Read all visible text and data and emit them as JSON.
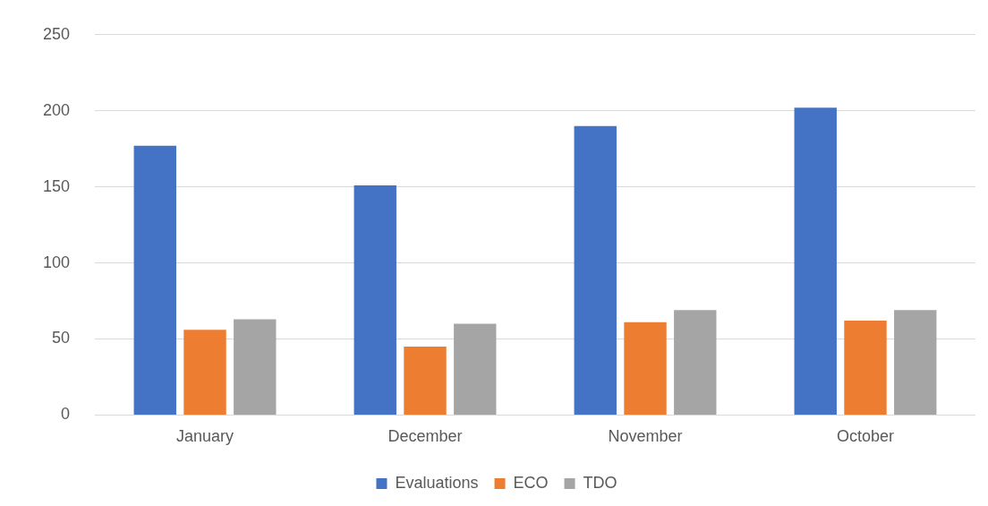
{
  "chart_data": {
    "type": "bar",
    "categories": [
      "January",
      "December",
      "November",
      "October"
    ],
    "series": [
      {
        "name": "Evaluations",
        "color": "#4472c4",
        "values": [
          177,
          151,
          190,
          202
        ]
      },
      {
        "name": "ECO",
        "color": "#ed7d31",
        "values": [
          56,
          45,
          61,
          62
        ]
      },
      {
        "name": "TDO",
        "color": "#a5a5a5",
        "values": [
          63,
          60,
          69,
          69
        ]
      }
    ],
    "ylim": [
      0,
      250
    ],
    "yticks": [
      0,
      50,
      100,
      150,
      200,
      250
    ],
    "grid": "y",
    "legend": "bottom"
  }
}
